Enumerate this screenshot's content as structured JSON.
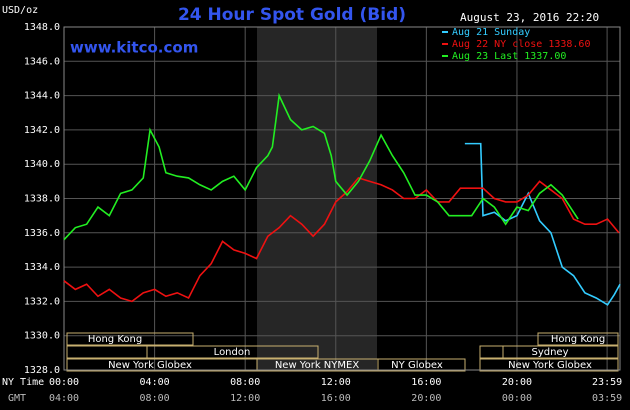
{
  "chart_data": {
    "type": "line",
    "title": "24 Hour Spot Gold (Bid)",
    "y_unit": "USD/oz",
    "site": "www.kitco.com",
    "date_label": "August 23, 2016 22:20",
    "x_row_labels": [
      "NY Time",
      "GMT"
    ],
    "xlim": [
      0,
      24.55
    ],
    "ylim": [
      1328,
      1348
    ],
    "grid": true,
    "xticks": [
      {
        "value": 0,
        "label": "00:00"
      },
      {
        "value": 4,
        "label": "04:00"
      },
      {
        "value": 8,
        "label": "08:00"
      },
      {
        "value": 12,
        "label": "12:00"
      },
      {
        "value": 16,
        "label": "16:00"
      },
      {
        "value": 20,
        "label": "20:00"
      },
      {
        "value": 23.98,
        "label": "23:59"
      }
    ],
    "gmt_tick_labels": [
      "04:00",
      "08:00",
      "12:00",
      "16:00",
      "20:00",
      "00:00",
      "03:59"
    ],
    "yticks": [
      {
        "value": 1328,
        "label": "1328.0"
      },
      {
        "value": 1330,
        "label": "1330.0"
      },
      {
        "value": 1332,
        "label": "1332.0"
      },
      {
        "value": 1334,
        "label": "1334.0"
      },
      {
        "value": 1336,
        "label": "1336.0"
      },
      {
        "value": 1338,
        "label": "1338.0"
      },
      {
        "value": 1340,
        "label": "1340.0"
      },
      {
        "value": 1342,
        "label": "1342.0"
      },
      {
        "value": 1344,
        "label": "1344.0"
      },
      {
        "value": 1346,
        "label": "1346.0"
      },
      {
        "value": 1348,
        "label": "1348.0"
      }
    ],
    "sessions": [
      "Hong Kong",
      "London",
      "New York Globex",
      "New York NYMEX",
      "NY Globex",
      "Hong Kong",
      "Sydney",
      "New York Globex"
    ],
    "series": [
      {
        "name": "Aug 21 Sunday",
        "color": "#33ccff",
        "x": [
          17.7,
          18.4,
          18.5,
          19,
          19.5,
          20,
          20.5,
          21,
          21.5,
          22,
          22.5,
          23,
          23.5,
          24,
          24.3,
          24.55
        ],
        "values": [
          1341.2,
          1341.2,
          1337,
          1337.2,
          1336.7,
          1337,
          1338.3,
          1336.7,
          1336,
          1334,
          1333.5,
          1332.5,
          1332.2,
          1331.8,
          1332.4,
          1333
        ]
      },
      {
        "name": "Aug 22 NY close 1338.60",
        "color": "#ee1111",
        "x": [
          0,
          0.5,
          1,
          1.5,
          2,
          2.5,
          3,
          3.5,
          4,
          4.5,
          5,
          5.5,
          6,
          6.5,
          7,
          7.5,
          8,
          8.5,
          9,
          9.5,
          10,
          10.5,
          11,
          11.5,
          12,
          12.5,
          13,
          13.5,
          14,
          14.5,
          15,
          15.5,
          16,
          16.5,
          17,
          17.5,
          18,
          18.5,
          19,
          19.5,
          20,
          20.5,
          21,
          21.5,
          22,
          22.5,
          23,
          23.5,
          24,
          24.5
        ],
        "values": [
          1333.2,
          1332.7,
          1333,
          1332.3,
          1332.7,
          1332.2,
          1332,
          1332.5,
          1332.7,
          1332.3,
          1332.5,
          1332.2,
          1333.5,
          1334.2,
          1335.5,
          1335,
          1334.8,
          1334.5,
          1335.8,
          1336.3,
          1337,
          1336.5,
          1335.8,
          1336.5,
          1337.8,
          1338.4,
          1339.2,
          1339,
          1338.8,
          1338.5,
          1338,
          1338,
          1338.5,
          1337.8,
          1337.8,
          1338.6,
          1338.6,
          1338.6,
          1338,
          1337.8,
          1337.8,
          1338.2,
          1339,
          1338.5,
          1338,
          1336.8,
          1336.5,
          1336.5,
          1336.8,
          1336
        ]
      },
      {
        "name": "Aug 23 Last 1337.00",
        "color": "#22ee22",
        "x": [
          0,
          0.5,
          1,
          1.5,
          2,
          2.5,
          3,
          3.5,
          3.8,
          4.2,
          4.5,
          5,
          5.5,
          6,
          6.5,
          7,
          7.5,
          8,
          8.5,
          9,
          9.2,
          9.5,
          10,
          10.5,
          11,
          11.5,
          11.8,
          12,
          12.5,
          13,
          13.5,
          14,
          14.5,
          15,
          15.5,
          16,
          16.5,
          17,
          17.5,
          18,
          18.5,
          19,
          19.5,
          20,
          20.5,
          21,
          21.5,
          22,
          22.7
        ],
        "values": [
          1335.6,
          1336.3,
          1336.5,
          1337.5,
          1337,
          1338.3,
          1338.5,
          1339.2,
          1342,
          1341,
          1339.5,
          1339.3,
          1339.2,
          1338.8,
          1338.5,
          1339,
          1339.3,
          1338.5,
          1339.8,
          1340.5,
          1341,
          1344,
          1342.6,
          1342,
          1342.2,
          1341.8,
          1340.5,
          1339,
          1338.2,
          1339,
          1340.2,
          1341.7,
          1340.5,
          1339.5,
          1338.2,
          1338.2,
          1337.8,
          1337,
          1337,
          1337,
          1338,
          1337.5,
          1336.5,
          1337.5,
          1337.3,
          1338.3,
          1338.8,
          1338.2,
          1336.8
        ]
      }
    ]
  }
}
